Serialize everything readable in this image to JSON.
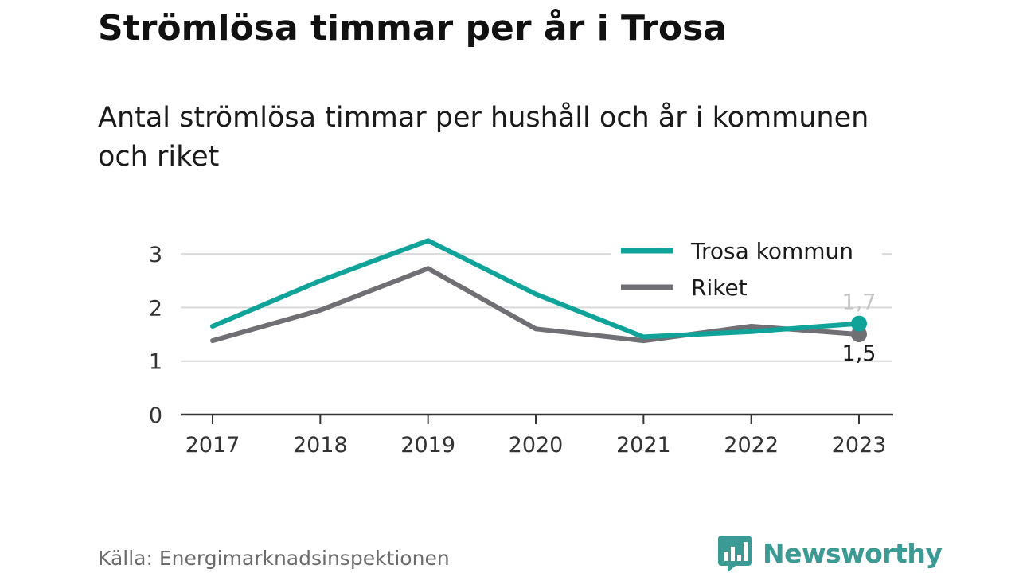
{
  "header": {
    "title": "Strömlösa timmar per år i Trosa",
    "subtitle": "Antal strömlösa timmar per hushåll och år i kommunen och riket"
  },
  "footer": {
    "source": "Källa: Energimarknadsinspektionen",
    "brand": "Newsworthy",
    "brand_icon": "bar-chart-speech-bubble-icon",
    "brand_color": "#3b9a94"
  },
  "chart_data": {
    "type": "line",
    "title": "Strömlösa timmar per år i Trosa",
    "subtitle": "Antal strömlösa timmar per hushåll och år i kommunen och riket",
    "xlabel": "",
    "ylabel": "",
    "x": [
      "2017",
      "2018",
      "2019",
      "2020",
      "2021",
      "2022",
      "2023"
    ],
    "ylim": [
      0,
      3.3
    ],
    "yticks": [
      0,
      1,
      2,
      3
    ],
    "grid": true,
    "legend": "top-right",
    "series": [
      {
        "name": "Trosa kommun",
        "color": "#0fa39a",
        "values": [
          1.65,
          2.5,
          3.25,
          2.25,
          1.45,
          1.55,
          1.7
        ],
        "end_label": "1,7"
      },
      {
        "name": "Riket",
        "color": "#707074",
        "values": [
          1.38,
          1.95,
          2.73,
          1.6,
          1.38,
          1.65,
          1.5
        ],
        "end_label": "1,5"
      }
    ]
  }
}
